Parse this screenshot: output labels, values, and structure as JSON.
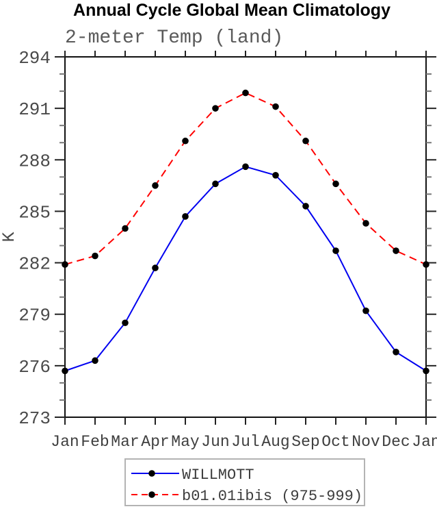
{
  "title": "Annual Cycle Global Mean Climatology",
  "subtitle": "2-meter Temp (land)",
  "chart_data": {
    "type": "line",
    "x_categories": [
      "Jan",
      "Feb",
      "Mar",
      "Apr",
      "May",
      "Jun",
      "Jul",
      "Aug",
      "Sep",
      "Oct",
      "Nov",
      "Dec",
      "Jan"
    ],
    "xlabel": "",
    "ylabel": "K",
    "ylim": [
      273,
      294
    ],
    "y_major_step": 3,
    "y_minor_step": 1,
    "grid": "off",
    "legend_position": "bottom-center",
    "series": [
      {
        "name": "WILLMOTT",
        "line_style": "solid",
        "line_color": "#0000f0",
        "marker": "filled-circle",
        "marker_color": "#000000",
        "values": [
          275.7,
          276.3,
          278.5,
          281.7,
          284.7,
          286.6,
          287.6,
          287.1,
          285.3,
          282.7,
          279.2,
          276.8,
          275.7
        ]
      },
      {
        "name": "b01.01ibis (975-999)",
        "line_style": "dashed",
        "line_color": "#ff0000",
        "marker": "filled-circle",
        "marker_color": "#000000",
        "values": [
          281.9,
          282.4,
          284.0,
          286.5,
          289.1,
          291.0,
          291.9,
          291.1,
          289.1,
          286.6,
          284.3,
          282.7,
          281.9
        ]
      }
    ]
  },
  "colors": {
    "axis": "#111111",
    "major_tick": "#222222",
    "minor_tick": "#777777",
    "tick_label": "#4a4a4a",
    "legend_border": "#b3b3b3",
    "background": "#ffffff"
  }
}
